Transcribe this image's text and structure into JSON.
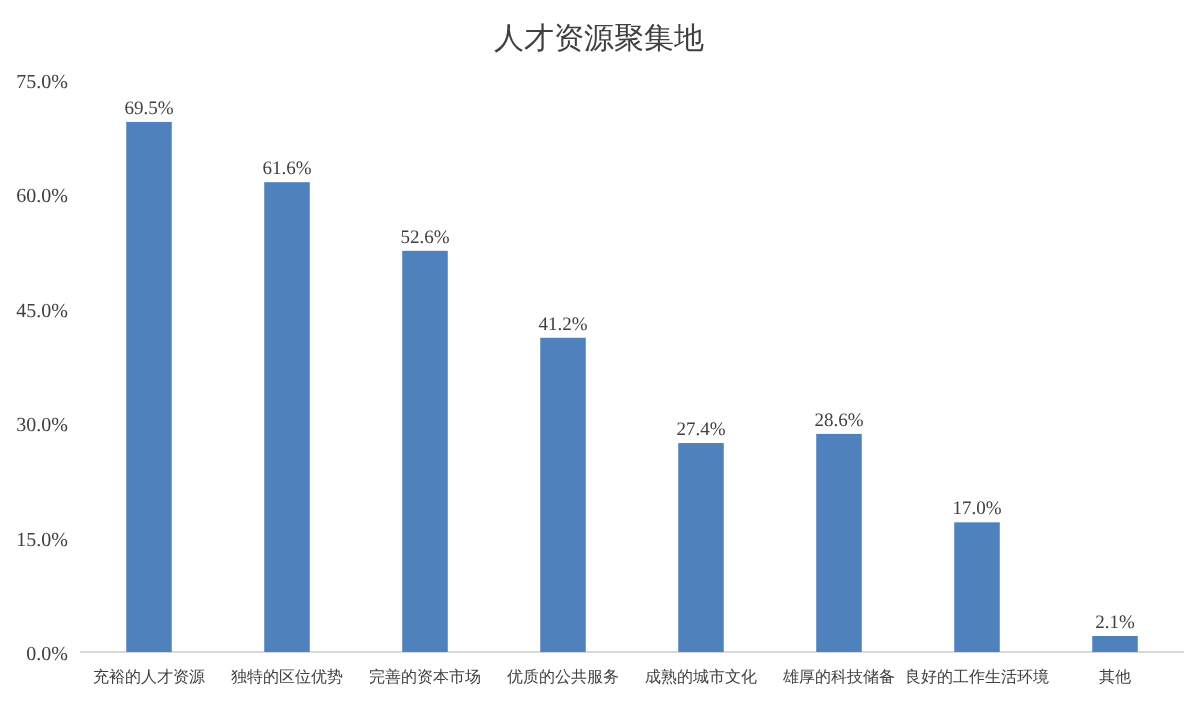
{
  "chart_data": {
    "type": "bar",
    "title": "人才资源聚集地",
    "categories": [
      "充裕的人才资源",
      "独特的区位优势",
      "完善的资本市场",
      "优质的公共服务",
      "成熟的城市文化",
      "雄厚的科技储备",
      "良好的工作生活环境",
      "其他"
    ],
    "values": [
      69.5,
      61.6,
      52.6,
      41.2,
      27.4,
      28.6,
      17.0,
      2.1
    ],
    "value_labels": [
      "69.5%",
      "61.6%",
      "52.6%",
      "41.2%",
      "27.4%",
      "28.6%",
      "17.0%",
      "2.1%"
    ],
    "color": "#4f81bd",
    "ylim": [
      0,
      75
    ],
    "yticks": [
      {
        "value": 0,
        "label": "0.0%"
      },
      {
        "value": 15,
        "label": "15.0%"
      },
      {
        "value": 30,
        "label": "30.0%"
      },
      {
        "value": 45,
        "label": "45.0%"
      },
      {
        "value": 60,
        "label": "60.0%"
      },
      {
        "value": 75,
        "label": "75.0%"
      }
    ],
    "grid": false
  }
}
